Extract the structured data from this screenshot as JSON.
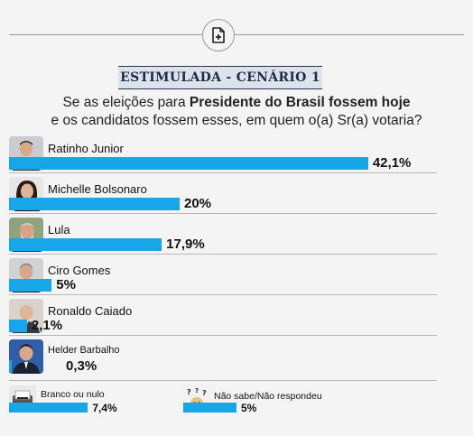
{
  "icon": "add-document-icon",
  "heading": "ESTIMULADA - CENÁRIO 1",
  "question": {
    "line1_prefix": "Se as eleições para ",
    "line1_bold": "Presidente do Brasil fossem hoje",
    "line2": "e os candidatos fossem esses, em quem o(a) Sr(a) votaria?"
  },
  "colors": {
    "bar": "#17a6e8",
    "heading_bg": "#dde3ec",
    "heading_text": "#1f2c45"
  },
  "chart_data": {
    "type": "bar",
    "orientation": "horizontal",
    "unit": "%",
    "categories": [
      "Ratinho Junior",
      "Michelle Bolsonaro",
      "Lula",
      "Ciro Gomes",
      "Ronaldo Caiado",
      "Helder Barbalho",
      "Branco ou nulo",
      "Não sabe/Não respondeu"
    ],
    "values": [
      42.1,
      20,
      17.9,
      5,
      2.1,
      0.3,
      7.4,
      5
    ],
    "labels": [
      "42,1%",
      "20%",
      "17,9%",
      "5%",
      "2,1%",
      "0,3%",
      "7,4%",
      "5%"
    ]
  }
}
